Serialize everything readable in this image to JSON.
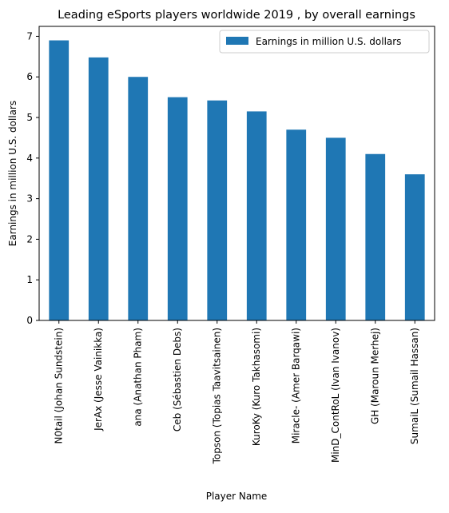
{
  "chart_data": {
    "type": "bar",
    "title": "Leading eSports players worldwide 2019 , by overall earnings",
    "xlabel": "Player Name",
    "ylabel": "Earnings in million U.S. dollars",
    "categories": [
      "N0tail (Johan Sundstein)",
      "JerAx (Jesse Vainikka)",
      "ana (Anathan Pham)",
      "Ceb (Sébastien Debs)",
      "Topson (Topias Taavitsainen)",
      "KuroKy (Kuro Takhasomi)",
      "Miracle- (Amer Barqawi)",
      "MinD_ContRoL (Ivan Ivanov)",
      "GH (Maroun Merhej)",
      "SumaiL (Sumail Hassan)"
    ],
    "series": [
      {
        "name": "Earnings in million U.S. dollars",
        "values": [
          6.9,
          6.48,
          6.0,
          5.5,
          5.42,
          5.15,
          4.7,
          4.5,
          4.1,
          3.6
        ],
        "color": "#1f77b4"
      }
    ],
    "ylim": [
      0,
      7.245
    ],
    "yticks": [
      0,
      1,
      2,
      3,
      4,
      5,
      6,
      7
    ],
    "legend": "top-right",
    "grid": false
  }
}
